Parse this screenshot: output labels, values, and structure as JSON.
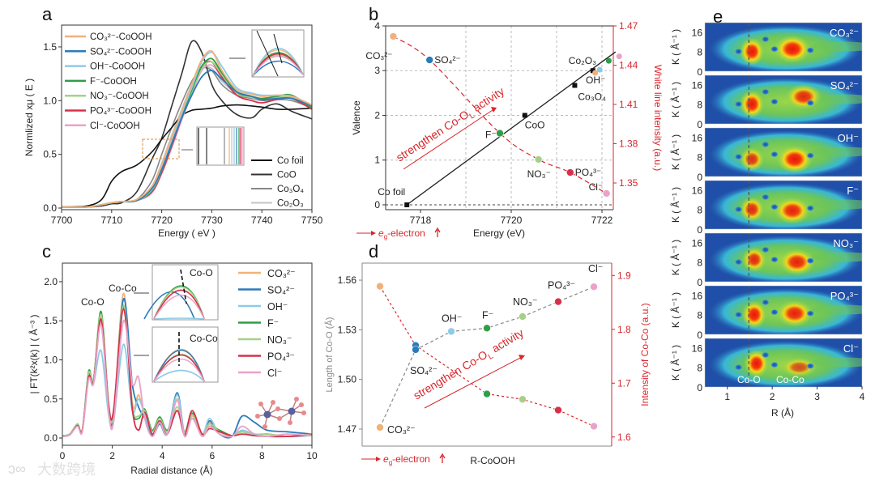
{
  "figure": {
    "panel_labels": [
      "a",
      "b",
      "c",
      "d",
      "e"
    ],
    "watermark": "大数跨境"
  },
  "chart_data": [
    {
      "panel": "a",
      "type": "line",
      "xlabel": "Energy ( eV )",
      "ylabel": "Normlized xμ ( E )",
      "xlim": [
        7700,
        7750
      ],
      "ylim": [
        0,
        1.7
      ],
      "xticks": [
        7700,
        7710,
        7720,
        7730,
        7740,
        7750
      ],
      "yticks": [
        0.0,
        0.5,
        1.0,
        1.5
      ],
      "ytick_labels": [
        "0.0",
        "0.5",
        "1.0",
        "1.5"
      ],
      "x": [
        7700,
        7705,
        7708,
        7710,
        7712,
        7715,
        7718,
        7720,
        7722,
        7724,
        7726,
        7728,
        7730,
        7732,
        7735,
        7738,
        7740,
        7743,
        7746,
        7750
      ],
      "series": [
        {
          "name": "CO₃²⁻-CoOOH",
          "group": "sample",
          "color": "#f0b27a",
          "values": [
            0.01,
            0.01,
            0.03,
            0.05,
            0.06,
            0.08,
            0.2,
            0.4,
            0.66,
            0.9,
            1.15,
            1.38,
            1.46,
            1.28,
            1.1,
            1.06,
            1.04,
            1.05,
            1.04,
            0.96
          ]
        },
        {
          "name": "SO₄²⁻-CoOOH",
          "group": "sample",
          "color": "#2b7bba",
          "values": [
            0.01,
            0.01,
            0.03,
            0.05,
            0.06,
            0.07,
            0.18,
            0.36,
            0.6,
            0.84,
            1.05,
            1.22,
            1.28,
            1.2,
            1.08,
            1.04,
            1.01,
            1.02,
            1.02,
            0.95
          ]
        },
        {
          "name": "OH⁻-CoOOH",
          "group": "sample",
          "color": "#8ecbe6",
          "values": [
            0.01,
            0.01,
            0.03,
            0.05,
            0.06,
            0.07,
            0.17,
            0.36,
            0.62,
            0.88,
            1.12,
            1.36,
            1.45,
            1.32,
            1.12,
            1.07,
            1.05,
            1.05,
            1.04,
            0.96
          ]
        },
        {
          "name": "F⁻-CoOOH",
          "group": "sample",
          "color": "#2e9e48",
          "values": [
            0.01,
            0.01,
            0.03,
            0.05,
            0.06,
            0.07,
            0.16,
            0.35,
            0.6,
            0.86,
            1.1,
            1.32,
            1.39,
            1.26,
            1.08,
            1.04,
            1.02,
            1.04,
            1.05,
            0.93
          ]
        },
        {
          "name": "NO₃⁻-CoOOH",
          "group": "sample",
          "color": "#a6d08a",
          "values": [
            0.01,
            0.01,
            0.03,
            0.05,
            0.06,
            0.07,
            0.16,
            0.35,
            0.6,
            0.85,
            1.08,
            1.3,
            1.36,
            1.24,
            1.07,
            1.03,
            1.01,
            1.03,
            1.03,
            0.94
          ]
        },
        {
          "name": "PO₄³⁻-CoOOH",
          "group": "sample",
          "color": "#d7304a",
          "values": [
            0.01,
            0.01,
            0.03,
            0.05,
            0.06,
            0.07,
            0.15,
            0.33,
            0.58,
            0.84,
            1.08,
            1.32,
            1.36,
            1.22,
            1.05,
            1.0,
            0.98,
            1.01,
            1.02,
            0.92
          ]
        },
        {
          "name": "Cl⁻-CoOOH",
          "group": "sample",
          "color": "#e9a3c9",
          "values": [
            0.01,
            0.01,
            0.03,
            0.05,
            0.06,
            0.07,
            0.14,
            0.32,
            0.56,
            0.82,
            1.06,
            1.28,
            1.33,
            1.22,
            1.07,
            1.03,
            1.01,
            1.02,
            1.02,
            0.95
          ]
        },
        {
          "name": "Co foil",
          "group": "reference",
          "color": "#111111",
          "values": [
            0.01,
            0.02,
            0.08,
            0.25,
            0.34,
            0.4,
            0.52,
            0.64,
            0.75,
            0.86,
            0.91,
            0.92,
            0.93,
            0.95,
            0.96,
            0.95,
            0.94,
            0.92,
            0.92,
            0.93
          ]
        },
        {
          "name": "CoO",
          "group": "reference",
          "color": "#333333",
          "values": [
            0.01,
            0.01,
            0.02,
            0.04,
            0.05,
            0.15,
            0.45,
            0.65,
            0.95,
            1.25,
            1.55,
            1.45,
            1.15,
            1.0,
            0.87,
            0.84,
            0.92,
            0.97,
            0.9,
            0.83
          ]
        },
        {
          "name": "Co₃O₄",
          "group": "reference",
          "color": "#888888",
          "values": [
            0.01,
            0.01,
            0.03,
            0.05,
            0.06,
            0.08,
            0.25,
            0.5,
            0.75,
            0.98,
            1.18,
            1.3,
            1.28,
            1.15,
            1.05,
            1.02,
            1.0,
            1.01,
            1.0,
            0.93
          ]
        },
        {
          "name": "Co₂O₃",
          "group": "reference",
          "color": "#c4c4c4",
          "values": [
            0.01,
            0.01,
            0.03,
            0.05,
            0.06,
            0.07,
            0.2,
            0.42,
            0.68,
            0.92,
            1.15,
            1.3,
            1.3,
            1.18,
            1.07,
            1.04,
            1.02,
            1.03,
            1.02,
            0.95
          ]
        }
      ]
    },
    {
      "panel": "b",
      "type": "scatter",
      "xlabel": "Energy (eV)",
      "ylabel": "Valence",
      "y2label": "White line intensity (a.u.)",
      "xlim": [
        7717.2,
        7722.25
      ],
      "ylim": [
        0,
        4
      ],
      "y2lim": [
        1.33,
        1.47
      ],
      "xticks": [
        7718,
        7720,
        7722
      ],
      "yticks": [
        0,
        1,
        2,
        3,
        4
      ],
      "y2ticks": [
        1.35,
        1.38,
        1.41,
        1.44,
        1.47
      ],
      "grid": true,
      "references": [
        {
          "name": "Co foil",
          "energy": 7717.7,
          "valence": 0
        },
        {
          "name": "CoO",
          "energy": 7720.3,
          "valence": 2
        },
        {
          "name": "Co₃O₄",
          "energy": 7721.4,
          "valence": 2.67
        },
        {
          "name": "Co₂O₃",
          "energy": 7721.8,
          "valence": 3
        }
      ],
      "fit_line": {
        "x": [
          7717.7,
          7722.3
        ],
        "y": [
          0,
          3.42
        ]
      },
      "samples": [
        {
          "name": "CO₃²⁻",
          "energy": 7717.4,
          "white_line": 1.462,
          "color": "#f0b27a"
        },
        {
          "name": "SO₄²⁻",
          "energy": 7718.2,
          "white_line": 1.444,
          "color": "#2b7bba"
        },
        {
          "name": "F⁻",
          "energy": 7719.75,
          "white_line": 1.388,
          "color": "#2e9e48"
        },
        {
          "name": "NO₃⁻",
          "energy": 7720.6,
          "white_line": 1.368,
          "color": "#a6d08a"
        },
        {
          "name": "PO₄³⁻",
          "energy": 7721.3,
          "white_line": 1.358,
          "color": "#d7304a"
        },
        {
          "name": "Cl⁻",
          "energy": 7722.1,
          "white_line": 1.342,
          "color": "#e9a3c9"
        }
      ],
      "samples_on_fit": [
        {
          "name": "CO₃²⁻",
          "energy": 7721.85,
          "valence": 2.95,
          "color": "#f0b27a"
        },
        {
          "name": "OH⁻",
          "energy": 7721.95,
          "valence": 3.02,
          "color": "#8ecbe6"
        },
        {
          "name": "F⁻",
          "energy": 7722.15,
          "valence": 3.22,
          "color": "#2e9e48"
        },
        {
          "name": "Cl⁻",
          "energy": 7722.38,
          "valence": 3.32,
          "color": "#e9a3c9"
        }
      ],
      "oh_label": "OH⁻",
      "annotation": {
        "text": "strengthen Co-O",
        "sub": "L",
        "tail": " activity"
      },
      "eg_note": {
        "e": "e",
        "sub": "g",
        "tail": "-electron"
      }
    },
    {
      "panel": "c",
      "type": "line",
      "xlabel": "Radial distance (Å)",
      "ylabel": "| FT(k²x(k) | ( Å⁻³ )",
      "xlim": [
        0,
        10
      ],
      "ylim": [
        -0.09,
        2.2
      ],
      "xticks": [
        0,
        2,
        4,
        6,
        8,
        10
      ],
      "yticks": [
        0.0,
        0.5,
        1.0,
        1.5,
        2.0
      ],
      "ytick_labels": [
        "0.0",
        "0.5",
        "1.0",
        "1.5",
        "2.0"
      ],
      "peak_labels": [
        "Co-O",
        "Co-Co"
      ],
      "inset_labels": [
        "Co-O",
        "Co-Co"
      ],
      "x": [
        0,
        0.3,
        0.6,
        0.8,
        1.05,
        1.25,
        1.55,
        1.85,
        2.05,
        2.45,
        2.8,
        3.05,
        3.3,
        3.6,
        3.9,
        4.2,
        4.6,
        4.9,
        5.2,
        5.6,
        5.9,
        6.3,
        6.8,
        7.2,
        7.7,
        8.2,
        9,
        10
      ],
      "series": [
        {
          "name": "CO₃²⁻",
          "color": "#f0b27a",
          "values": [
            0.03,
            0.05,
            0.17,
            0.1,
            0.8,
            0.75,
            1.55,
            0.42,
            0.28,
            1.85,
            0.45,
            0.55,
            0.3,
            0.05,
            0.2,
            0.05,
            0.5,
            0.05,
            0.28,
            0.05,
            0.2,
            0.08,
            0.03,
            0.08,
            0.03,
            0.05,
            0.02,
            0.05
          ]
        },
        {
          "name": "SO₄²⁻",
          "color": "#2b7bba",
          "values": [
            0.03,
            0.05,
            0.17,
            0.1,
            0.8,
            0.75,
            1.52,
            0.4,
            0.26,
            1.78,
            0.7,
            0.4,
            0.25,
            0.03,
            0.18,
            0.05,
            0.58,
            0.05,
            0.25,
            0.05,
            0.22,
            0.05,
            0.02,
            0.28,
            0.2,
            0.1,
            0.08,
            0.05
          ]
        },
        {
          "name": "OH⁻",
          "color": "#8ecbe6",
          "values": [
            0.03,
            0.05,
            0.15,
            0.1,
            0.75,
            0.7,
            1.12,
            0.3,
            0.2,
            1.2,
            0.35,
            0.5,
            0.3,
            0.05,
            0.2,
            0.05,
            0.55,
            0.05,
            0.3,
            0.05,
            0.25,
            0.05,
            0.03,
            0.1,
            0.05,
            0.05,
            0.02,
            0.03
          ]
        },
        {
          "name": "F⁻",
          "color": "#2e9e48",
          "values": [
            0.03,
            0.05,
            0.18,
            0.1,
            0.85,
            0.75,
            1.62,
            0.45,
            0.3,
            1.68,
            0.4,
            0.25,
            0.37,
            0.1,
            0.27,
            0.1,
            0.35,
            0.08,
            0.32,
            0.05,
            0.15,
            0.1,
            0.03,
            0.08,
            0.03,
            0.05,
            0.02,
            0.05
          ]
        },
        {
          "name": "NO₃⁻",
          "color": "#a6d08a",
          "values": [
            0.03,
            0.05,
            0.18,
            0.1,
            0.83,
            0.75,
            1.58,
            0.44,
            0.3,
            1.7,
            0.42,
            0.28,
            0.35,
            0.08,
            0.25,
            0.08,
            0.4,
            0.07,
            0.3,
            0.05,
            0.18,
            0.08,
            0.03,
            0.08,
            0.03,
            0.05,
            0.02,
            0.05
          ]
        },
        {
          "name": "PO₄³⁻",
          "color": "#d7304a",
          "values": [
            0.02,
            0.04,
            0.16,
            0.1,
            0.78,
            0.72,
            1.52,
            0.42,
            0.35,
            1.65,
            0.38,
            0.1,
            0.33,
            0.05,
            0.22,
            0.05,
            0.35,
            0.04,
            0.35,
            0.05,
            0.12,
            0.08,
            0.03,
            0.05,
            0.03,
            0.02,
            0.02,
            0.04
          ]
        },
        {
          "name": "Cl⁻",
          "color": "#e9a3c9",
          "values": [
            0.02,
            0.04,
            0.15,
            0.08,
            0.75,
            0.7,
            1.45,
            0.35,
            0.2,
            1.5,
            0.7,
            0.78,
            0.25,
            0.02,
            0.2,
            0.05,
            0.48,
            0.02,
            0.25,
            0.02,
            0.15,
            0.05,
            0.02,
            0.15,
            0.05,
            0.02,
            0.05,
            0.03
          ]
        }
      ]
    },
    {
      "panel": "d",
      "type": "scatter",
      "xlabel": "R-CoOOH",
      "ylabel": "Length of Co-O (Å)",
      "y2label": "Intensity of Co-Co (a.u.)",
      "ylim": [
        1.46,
        1.57
      ],
      "y2lim": [
        1.583,
        1.923
      ],
      "yticks": [
        1.47,
        1.5,
        1.53,
        1.56
      ],
      "ytick_labels": [
        "1.47",
        "1.50",
        "1.53",
        "1.56"
      ],
      "y2ticks": [
        1.6,
        1.7,
        1.8,
        1.9
      ],
      "y2tick_labels": [
        "1.6",
        "1.7",
        "1.8",
        "1.9"
      ],
      "categories": [
        "CO₃²⁻",
        "SO₄²⁻",
        "OH⁻",
        "F⁻",
        "NO₃⁻",
        "PO₄³⁻",
        "Cl⁻"
      ],
      "colors": [
        "#f0b27a",
        "#2b7bba",
        "#8ecbe6",
        "#2e9e48",
        "#a6d08a",
        "#d7304a",
        "#e9a3c9"
      ],
      "co_o_length": [
        1.471,
        1.518,
        1.529,
        1.531,
        1.538,
        1.547,
        1.556
      ],
      "co_co_intensity": [
        1.88,
        1.77,
        null,
        1.68,
        1.67,
        1.65,
        1.62
      ],
      "annotation": {
        "text": "strengthen Co-O",
        "sub": "L",
        "tail": " activity"
      },
      "eg_note": {
        "e": "e",
        "sub": "g",
        "tail": "-electron"
      }
    },
    {
      "panel": "e",
      "type": "heatmap",
      "xlabel": "R (Å)",
      "ylabel": "K ( Å⁻¹ )",
      "xlim": [
        0.5,
        4
      ],
      "ylim": [
        0,
        19.7
      ],
      "xticks": [
        1,
        2,
        3,
        4
      ],
      "yticks": [
        0,
        8,
        16
      ],
      "dashed_line_R": 1.48,
      "bottom_labels": [
        "Co-O",
        "Co-Co"
      ],
      "maps": [
        {
          "name": "CO₃²⁻",
          "hotspots": [
            [
              1.55,
              8,
              1.0
            ],
            [
              2.45,
              9,
              1.0
            ]
          ]
        },
        {
          "name": "SO₄²⁻",
          "hotspots": [
            [
              1.55,
              8,
              1.0
            ],
            [
              2.7,
              11,
              0.9
            ]
          ]
        },
        {
          "name": "OH⁻",
          "hotspots": [
            [
              1.55,
              7,
              0.85
            ],
            [
              2.5,
              7,
              1.0
            ]
          ]
        },
        {
          "name": "F⁻",
          "hotspots": [
            [
              1.55,
              8,
              0.9
            ],
            [
              2.45,
              7.5,
              0.95
            ]
          ]
        },
        {
          "name": "NO₃⁻",
          "hotspots": [
            [
              1.6,
              9,
              0.9
            ],
            [
              2.55,
              8,
              0.95
            ]
          ]
        },
        {
          "name": "PO₄³⁻",
          "hotspots": [
            [
              1.6,
              8,
              1.0
            ],
            [
              2.5,
              8.5,
              0.95
            ]
          ]
        },
        {
          "name": "Cl⁻",
          "hotspots": [
            [
              1.65,
              9.5,
              1.0
            ],
            [
              2.6,
              8,
              0.7
            ]
          ]
        }
      ]
    }
  ]
}
